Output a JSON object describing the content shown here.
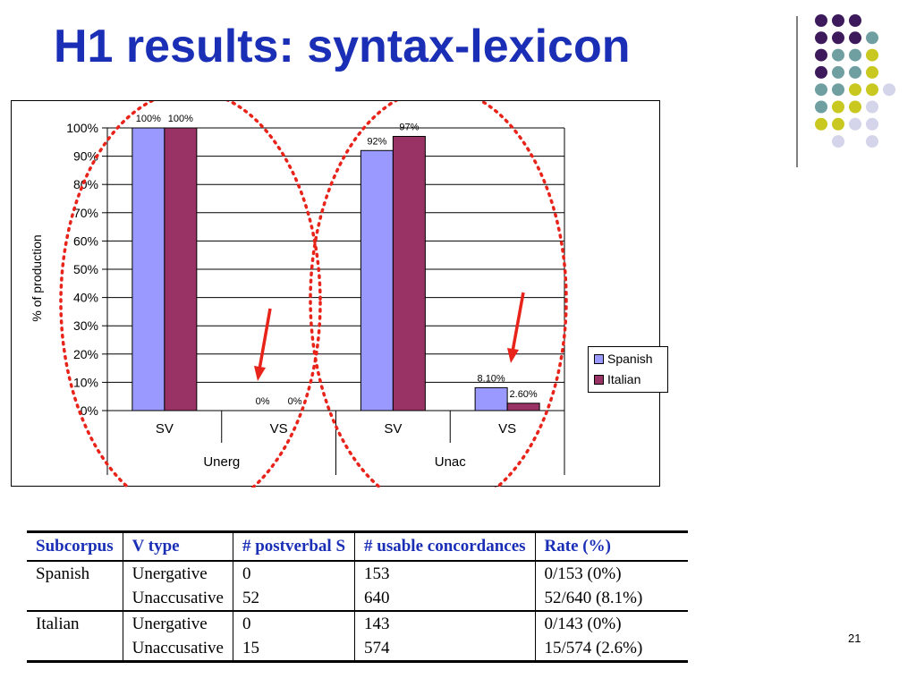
{
  "slide": {
    "title": "H1 results: syntax-lexicon",
    "page_number": "21"
  },
  "chart_data": {
    "type": "bar",
    "groups": [
      "Unerg",
      "Unac"
    ],
    "categories": [
      "SV",
      "VS",
      "SV",
      "VS"
    ],
    "series": [
      {
        "name": "Spanish",
        "values": [
          100,
          0,
          92,
          8.1
        ],
        "labels": [
          "100%",
          "0%",
          "92%",
          "8.10%"
        ],
        "color": "#9999ff"
      },
      {
        "name": "Italian",
        "values": [
          100,
          0,
          97,
          2.6
        ],
        "labels": [
          "100%",
          "0%",
          "97%",
          "2.60%"
        ],
        "color": "#993366"
      }
    ],
    "ylabel": "% of production",
    "ylim": [
      0,
      100
    ],
    "yticks": [
      "0%",
      "10%",
      "20%",
      "30%",
      "40%",
      "50%",
      "60%",
      "70%",
      "80%",
      "90%",
      "100%"
    ],
    "grid": true,
    "legend": "right",
    "annotations": "red dotted ellipses around each group; red arrows pointing at VS bars"
  },
  "table": {
    "headers": [
      "Subcorpus",
      "V type",
      "# postverbal S",
      "# usable concordances",
      "Rate (%)"
    ],
    "rows": [
      [
        "Spanish",
        "Unergative",
        "0",
        "153",
        "0/153 (0%)"
      ],
      [
        "",
        "Unaccusative",
        "52",
        "640",
        "52/640 (8.1%)"
      ],
      [
        "Italian",
        "Unergative",
        "0",
        "143",
        "0/143 (0%)"
      ],
      [
        "",
        "Unaccusative",
        "15",
        "574",
        "15/574 (2.6%)"
      ]
    ]
  },
  "colors": {
    "title": "#1a2fb6",
    "annotation": "#e8231a",
    "dot_purple": "#3d1a5b",
    "dot_teal": "#6f9fa0",
    "dot_yellow": "#c8c820",
    "dot_lavender": "#d4d4ea"
  }
}
